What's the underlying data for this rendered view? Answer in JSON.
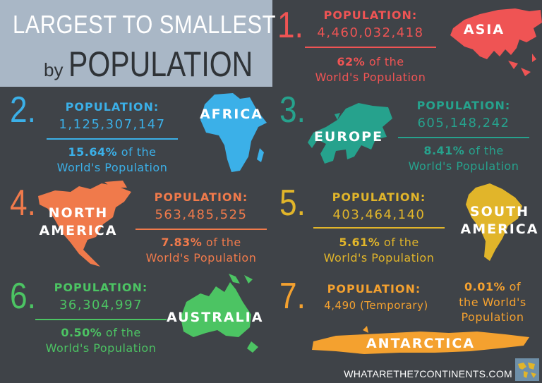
{
  "title": {
    "line1": "LARGEST TO SMALLEST",
    "by": "by",
    "line2": "POPULATION"
  },
  "colors": {
    "asia": "#ef5454",
    "africa": "#3bb0e8",
    "europe": "#26a28d",
    "north_america": "#f07a4b",
    "south_america": "#e1b52a",
    "australia": "#4cc463",
    "antarctica": "#f4a12f",
    "background": "#3f4348",
    "title_box": "#a9b7c6"
  },
  "continents": [
    {
      "rank": "1.",
      "name": "ASIA",
      "pop_label": "POPULATION:",
      "population": "4,460,032,418",
      "pct": "62%",
      "pct_suffix": "of the",
      "pct_line2": "World's Population"
    },
    {
      "rank": "2.",
      "name": "AFRICA",
      "pop_label": "POPULATION:",
      "population": "1,125,307,147",
      "pct": "15.64%",
      "pct_suffix": "of the",
      "pct_line2": "World's Population"
    },
    {
      "rank": "3.",
      "name": "EUROPE",
      "pop_label": "POPULATION:",
      "population": "605,148,242",
      "pct": "8.41%",
      "pct_suffix": "of the",
      "pct_line2": "World's Population"
    },
    {
      "rank": "4.",
      "name_line1": "NORTH",
      "name_line2": "AMERICA",
      "pop_label": "POPULATION:",
      "population": "563,485,525",
      "pct": "7.83%",
      "pct_suffix": "of the",
      "pct_line2": "World's Population"
    },
    {
      "rank": "5.",
      "name_line1": "SOUTH",
      "name_line2": "AMERICA",
      "pop_label": "POPULATION:",
      "population": "403,464,140",
      "pct": "5.61%",
      "pct_suffix": "of the",
      "pct_line2": "World's Population"
    },
    {
      "rank": "6.",
      "name": "AUSTRALIA",
      "pop_label": "POPULATION:",
      "population": "36,304,997",
      "pct": "0.50%",
      "pct_suffix": "of the",
      "pct_line2": "World's Population"
    },
    {
      "rank": "7.",
      "name": "ANTARCTICA",
      "pop_label": "POPULATION:",
      "population": "4,490 (Temporary)",
      "pct": "0.01%",
      "pct_suffix": "of",
      "pct_line2": "the World's",
      "pct_line3": "Population"
    }
  ],
  "footer": {
    "site": "WHATARETHE7CONTINENTS.COM",
    "logo_icon": "globe-icon"
  }
}
